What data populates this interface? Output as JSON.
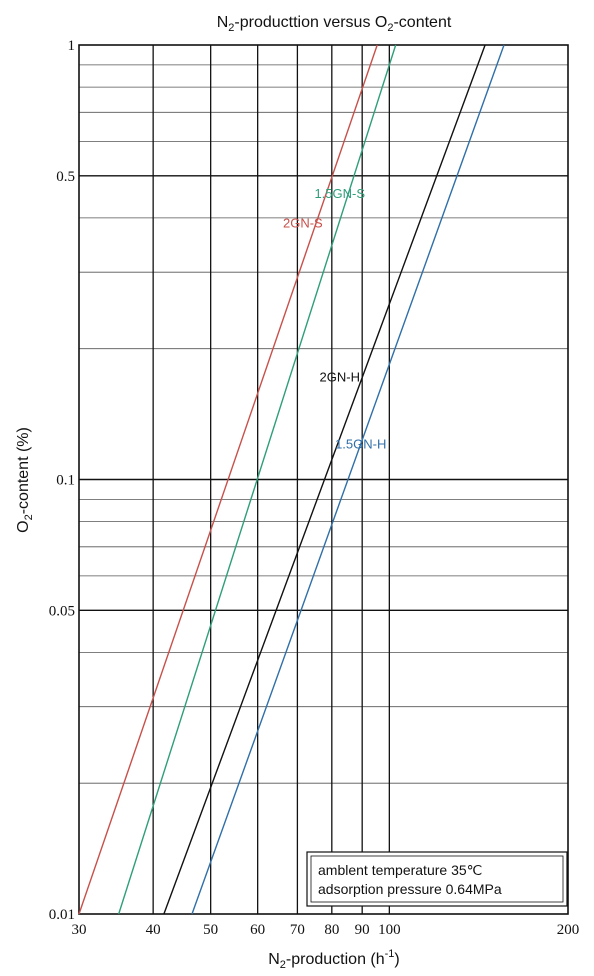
{
  "chart_data": {
    "type": "line",
    "title": {
      "pre": "N",
      "sub1": "2",
      "mid": "-producttion versus O",
      "sub2": "2",
      "post": "-content"
    },
    "xlabel": {
      "pre": "N",
      "sub": "2",
      "mid": "-production (h",
      "sup": "-1",
      "post": ")"
    },
    "ylabel": {
      "pre": "O",
      "sub": "2",
      "post": "-content (%)"
    },
    "x_scale": "log",
    "y_scale": "log",
    "xlim": [
      30,
      200
    ],
    "ylim": [
      0.01,
      1
    ],
    "x_ticks": [
      {
        "value": 30,
        "label": "30"
      },
      {
        "value": 40,
        "label": "40"
      },
      {
        "value": 50,
        "label": "50"
      },
      {
        "value": 60,
        "label": "60"
      },
      {
        "value": 70,
        "label": "70"
      },
      {
        "value": 80,
        "label": "80"
      },
      {
        "value": 90,
        "label": "90"
      },
      {
        "value": 100,
        "label": "100"
      },
      {
        "value": 200,
        "label": "200"
      }
    ],
    "y_ticks": [
      {
        "value": 0.01,
        "label": "0.01"
      },
      {
        "value": 0.05,
        "label": "0.05"
      },
      {
        "value": 0.1,
        "label": "0.1"
      },
      {
        "value": 0.5,
        "label": "0.5"
      },
      {
        "value": 1,
        "label": "1"
      }
    ],
    "grid": true,
    "series": [
      {
        "name": "2GN-S",
        "color": "#c8504a",
        "x": [
          30,
          95.4
        ],
        "y": [
          0.01,
          1
        ],
        "label_at": {
          "x": 71.5,
          "y": 0.38
        }
      },
      {
        "name": "1.5GN-S",
        "color": "#2e9e7a",
        "x": [
          35,
          102.5
        ],
        "y": [
          0.01,
          1
        ],
        "label_at": {
          "x": 82.5,
          "y": 0.445
        }
      },
      {
        "name": "2GN-H",
        "color": "#111111",
        "x": [
          41.7,
          145
        ],
        "y": [
          0.01,
          1
        ],
        "label_at": {
          "x": 82.5,
          "y": 0.168
        }
      },
      {
        "name": "1.5GN-H",
        "color": "#2f6fa8",
        "x": [
          46.5,
          156
        ],
        "y": [
          0.01,
          1
        ],
        "label_at": {
          "x": 89.5,
          "y": 0.118
        }
      }
    ],
    "annotation": {
      "lines": [
        "amblent temperature 35℃",
        "adsorption pressure  0.64MPa"
      ]
    }
  }
}
